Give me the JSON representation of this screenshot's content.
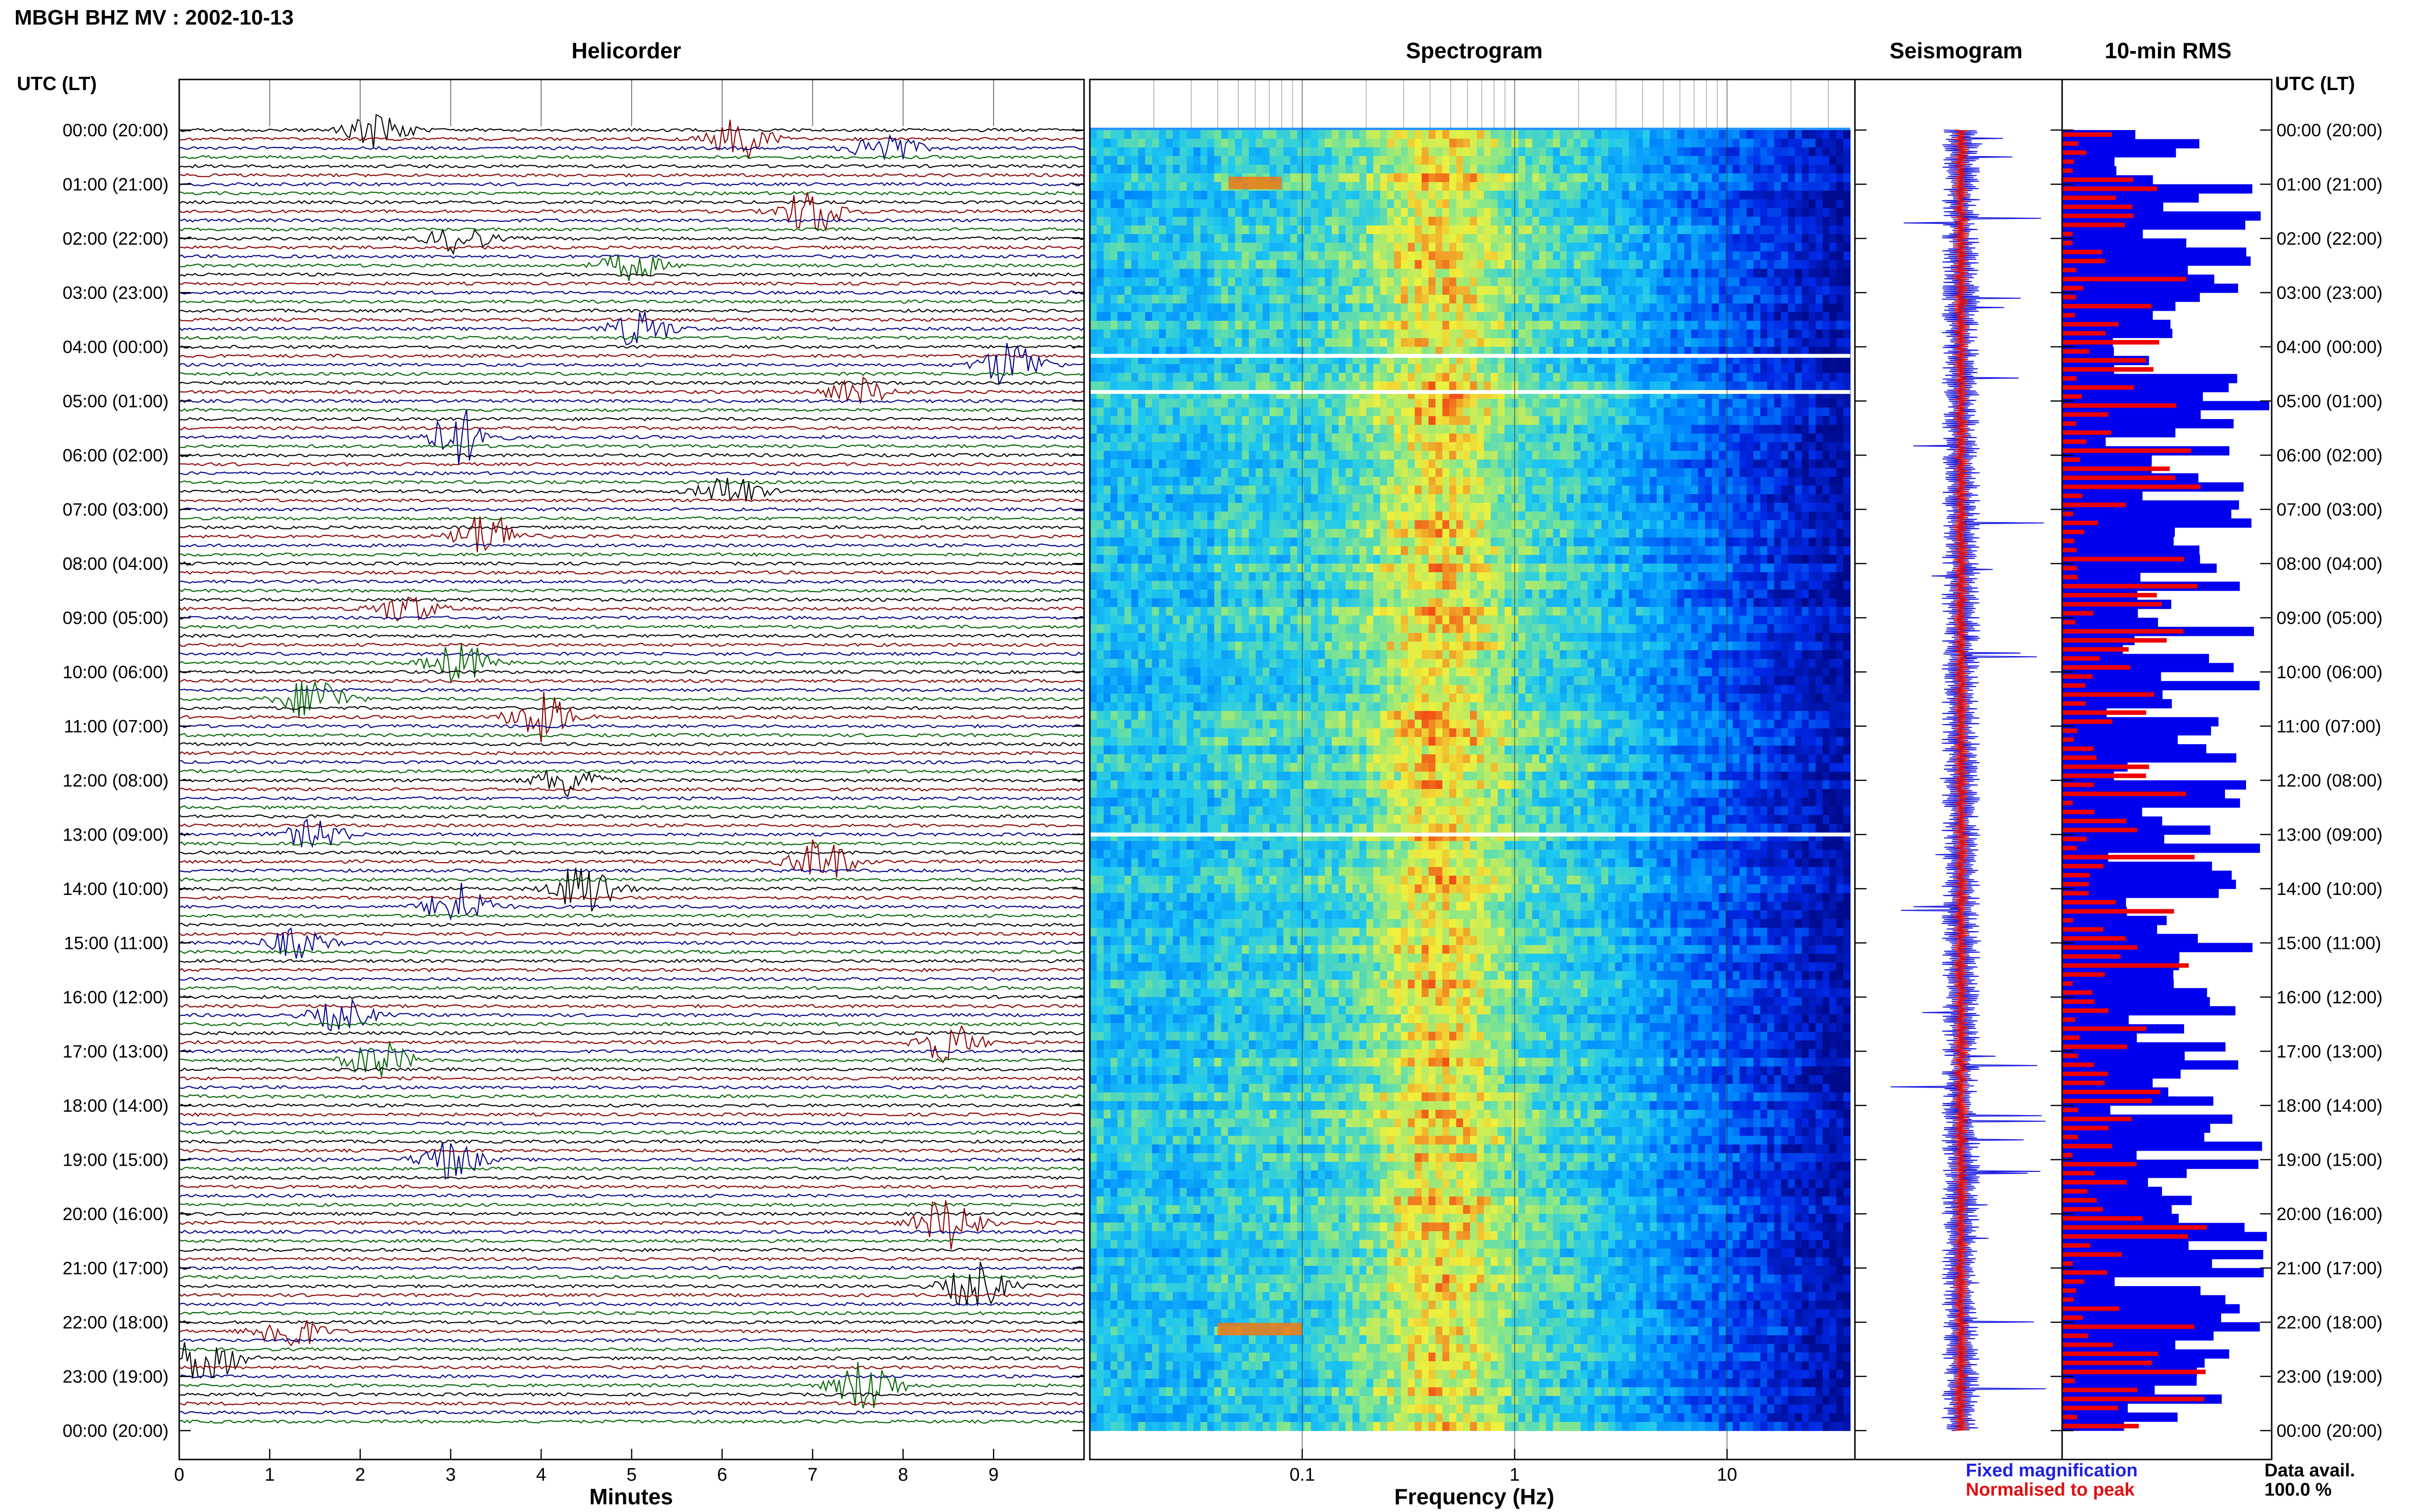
{
  "header": {
    "title": "MBGH BHZ MV : 2002-10-13",
    "left_axis_label": "UTC (LT)",
    "right_axis_label": "UTC (LT)"
  },
  "panels": {
    "helicorder": "Helicorder",
    "spectrogram": "Spectrogram",
    "seismogram": "Seismogram",
    "rms": "10-min RMS"
  },
  "legend": {
    "fixed": "Fixed magnification",
    "normalised": "Normalised to peak",
    "fixed_color": "#1f1fe0",
    "normalised_color": "#e01010"
  },
  "data_avail": {
    "label": "Data avail.",
    "value": "100.0 %"
  },
  "colors": {
    "trace_cycle": [
      "#000000",
      "#8b0000",
      "#00008b",
      "#006400"
    ],
    "rms_bar": "#0000ee",
    "rms_norm": "#ee0000"
  },
  "chart_data": [
    {
      "type": "line",
      "title": "Helicorder",
      "xlabel": "Minutes",
      "x_ticks": [
        "0",
        "1",
        "2",
        "3",
        "4",
        "5",
        "6",
        "7",
        "8",
        "9"
      ],
      "xlim": [
        0,
        10
      ],
      "y_ticks": [
        "00:00 (20:00)",
        "01:00 (21:00)",
        "02:00 (22:00)",
        "03:00 (23:00)",
        "04:00 (00:00)",
        "05:00 (01:00)",
        "06:00 (02:00)",
        "07:00 (03:00)",
        "08:00 (04:00)",
        "09:00 (05:00)",
        "10:00 (06:00)",
        "11:00 (07:00)",
        "12:00 (08:00)",
        "13:00 (09:00)",
        "14:00 (10:00)",
        "15:00 (11:00)",
        "16:00 (12:00)",
        "17:00 (13:00)",
        "18:00 (14:00)",
        "19:00 (15:00)",
        "20:00 (16:00)",
        "21:00 (17:00)",
        "22:00 (18:00)",
        "23:00 (19:00)",
        "00:00 (20:00)"
      ],
      "lines_per_hour": 6,
      "events": [
        {
          "line": 0,
          "minute": 2.2,
          "amp": 2.2
        },
        {
          "line": 1,
          "minute": 6.2,
          "amp": 2.5
        },
        {
          "line": 2,
          "minute": 7.8,
          "amp": 2.2
        },
        {
          "line": 9,
          "minute": 7.0,
          "amp": 3.0
        },
        {
          "line": 12,
          "minute": 3.1,
          "amp": 1.8
        },
        {
          "line": 15,
          "minute": 5.0,
          "amp": 1.8
        },
        {
          "line": 22,
          "minute": 5.1,
          "amp": 2.3
        },
        {
          "line": 26,
          "minute": 9.2,
          "amp": 3.0
        },
        {
          "line": 29,
          "minute": 7.5,
          "amp": 1.8
        },
        {
          "line": 34,
          "minute": 3.1,
          "amp": 3.5
        },
        {
          "line": 40,
          "minute": 6.1,
          "amp": 2.0
        },
        {
          "line": 45,
          "minute": 3.4,
          "amp": 3.0
        },
        {
          "line": 53,
          "minute": 2.5,
          "amp": 1.8
        },
        {
          "line": 59,
          "minute": 3.1,
          "amp": 2.5
        },
        {
          "line": 63,
          "minute": 1.5,
          "amp": 3.0
        },
        {
          "line": 65,
          "minute": 4.0,
          "amp": 3.0
        },
        {
          "line": 72,
          "minute": 4.3,
          "amp": 2.2
        },
        {
          "line": 78,
          "minute": 1.5,
          "amp": 1.8
        },
        {
          "line": 81,
          "minute": 7.1,
          "amp": 2.8
        },
        {
          "line": 84,
          "minute": 4.5,
          "amp": 3.5
        },
        {
          "line": 86,
          "minute": 3.1,
          "amp": 3.0
        },
        {
          "line": 90,
          "minute": 1.3,
          "amp": 1.8
        },
        {
          "line": 98,
          "minute": 1.8,
          "amp": 2.0
        },
        {
          "line": 101,
          "minute": 8.5,
          "amp": 2.5
        },
        {
          "line": 103,
          "minute": 2.2,
          "amp": 2.5
        },
        {
          "line": 114,
          "minute": 3.0,
          "amp": 2.5
        },
        {
          "line": 121,
          "minute": 8.5,
          "amp": 3.5
        },
        {
          "line": 128,
          "minute": 8.8,
          "amp": 3.0
        },
        {
          "line": 133,
          "minute": 1.2,
          "amp": 2.5
        },
        {
          "line": 136,
          "minute": 0.3,
          "amp": 3.5
        },
        {
          "line": 139,
          "minute": 7.6,
          "amp": 3.5
        }
      ]
    },
    {
      "type": "heatmap",
      "title": "Spectrogram",
      "xlabel": "Frequency (Hz)",
      "x_ticks": [
        "0.1",
        "1",
        "10"
      ],
      "x_scale": "log",
      "xlim": [
        0.01,
        40
      ],
      "data_gaps_utc": [
        "04:10",
        "04:50",
        "13:00"
      ]
    },
    {
      "type": "line",
      "title": "Seismogram",
      "series": [
        {
          "name": "Fixed magnification",
          "color": "#1f1fe0"
        },
        {
          "name": "Normalised to peak",
          "color": "#e01010"
        }
      ]
    },
    {
      "type": "bar",
      "title": "10-min RMS",
      "bins_per_hour": 6,
      "series": [
        {
          "name": "Fixed magnification",
          "color": "#0000ee"
        },
        {
          "name": "Normalised to peak",
          "color": "#ee0000"
        }
      ]
    }
  ]
}
